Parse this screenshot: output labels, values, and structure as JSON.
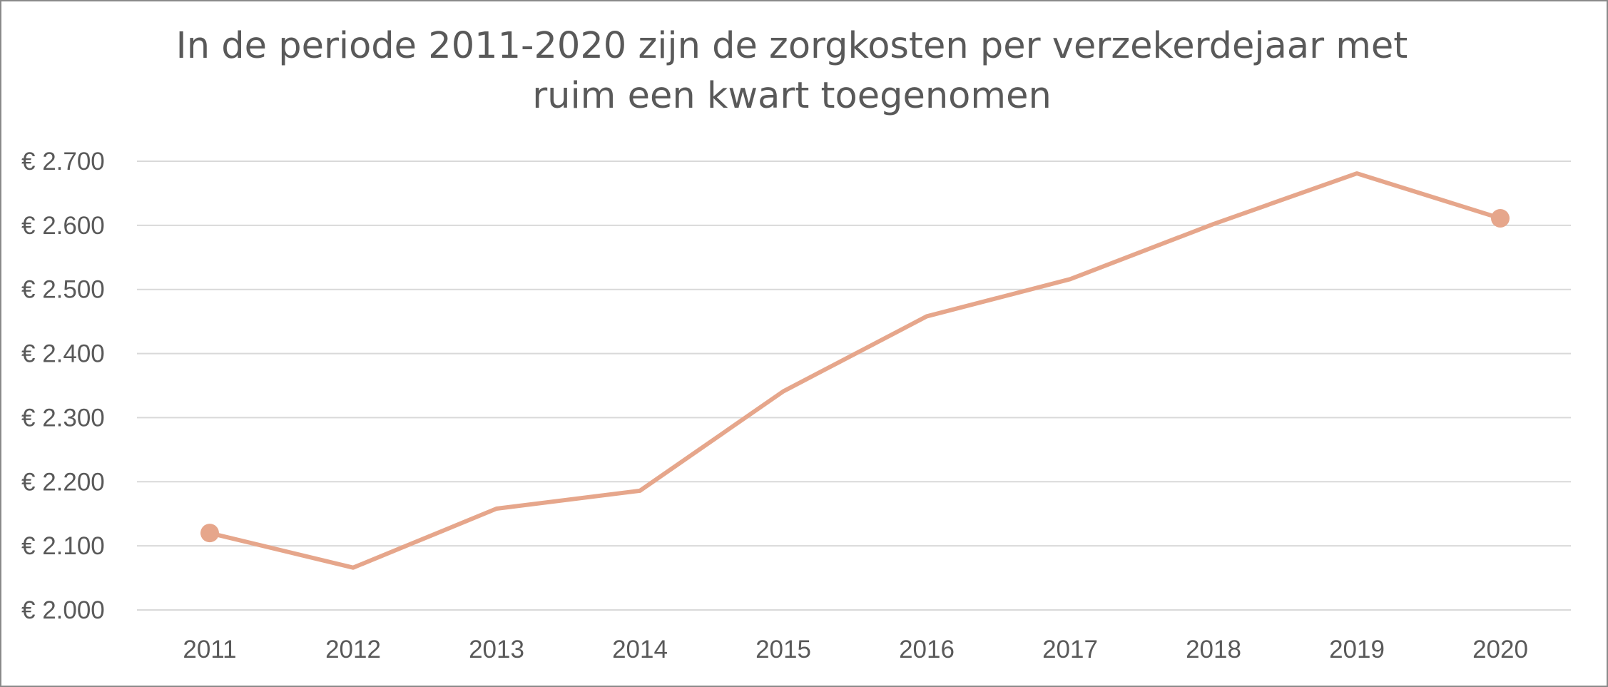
{
  "chart_data": {
    "type": "line",
    "title_lines": [
      "In de periode 2011-2020 zijn de zorgkosten per verzekerdejaar met",
      "ruim een kwart toegenomen"
    ],
    "xlabel": "",
    "ylabel": "",
    "categories": [
      "2011",
      "2012",
      "2013",
      "2014",
      "2015",
      "2016",
      "2017",
      "2018",
      "2019",
      "2020"
    ],
    "values": [
      2120,
      2066,
      2158,
      2186,
      2341,
      2458,
      2516,
      2602,
      2681,
      2611
    ],
    "y_ticks": [
      {
        "value": 2000,
        "label": "€ 2.000"
      },
      {
        "value": 2100,
        "label": "€ 2.100"
      },
      {
        "value": 2200,
        "label": "€ 2.200"
      },
      {
        "value": 2300,
        "label": "€ 2.300"
      },
      {
        "value": 2400,
        "label": "€ 2.400"
      },
      {
        "value": 2500,
        "label": "€ 2.500"
      },
      {
        "value": 2600,
        "label": "€ 2.600"
      },
      {
        "value": 2700,
        "label": "€ 2.700"
      }
    ],
    "ylim": [
      2000,
      2700
    ],
    "grid": true,
    "legend": "none",
    "line_color": "#E6A68B",
    "grid_color": "#D9D9D9",
    "marker_points": [
      "2011",
      "2020"
    ]
  }
}
